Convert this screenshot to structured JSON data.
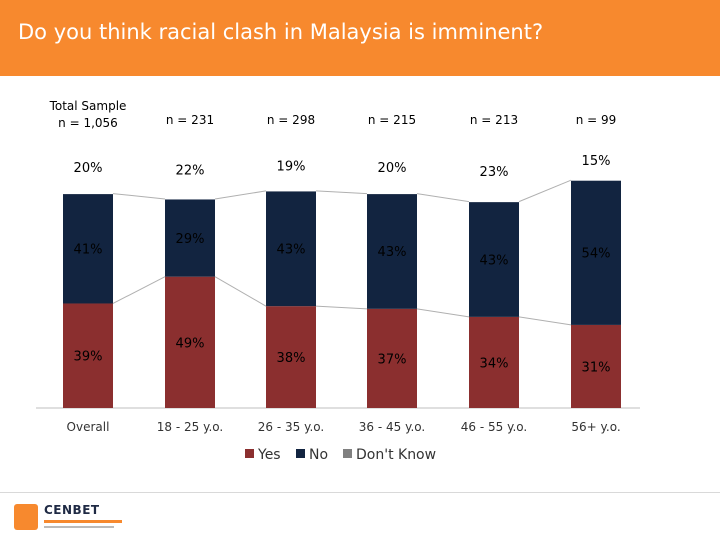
{
  "title": "Do you think racial clash in Malaysia is imminent?",
  "logo": {
    "text": "CENBET"
  },
  "colors": {
    "header": "#f7892e",
    "yes": "#8b2f2f",
    "no": "#122440",
    "dont_know": "#ffffff",
    "legend_dont_know": "#808080"
  },
  "chart_data": {
    "type": "bar",
    "stacked": true,
    "percent": true,
    "categories": [
      "Overall",
      "18 - 25 y.o.",
      "26 - 35 y.o.",
      "36 - 45 y.o.",
      "46 - 55 y.o.",
      "56+ y.o."
    ],
    "sample_sizes": [
      "Total Sample\nn = 1,056",
      "n = 231",
      "n = 298",
      "n = 215",
      "n = 213",
      "n = 99"
    ],
    "series": [
      {
        "name": "Yes",
        "values": [
          39,
          49,
          38,
          37,
          34,
          31
        ],
        "labels": [
          "39%",
          "49%",
          "38%",
          "37%",
          "34%",
          "31%"
        ]
      },
      {
        "name": "No",
        "values": [
          41,
          29,
          43,
          43,
          43,
          54
        ],
        "labels": [
          "41%",
          "29%",
          "43%",
          "43%",
          "43%",
          "54%"
        ]
      },
      {
        "name": "Don't Know",
        "values": [
          20,
          22,
          19,
          20,
          23,
          15
        ],
        "labels": [
          "20%",
          "22%",
          "19%",
          "20%",
          "23%",
          "15%"
        ]
      }
    ],
    "ylim": [
      0,
      100
    ],
    "legend_position": "bottom"
  }
}
